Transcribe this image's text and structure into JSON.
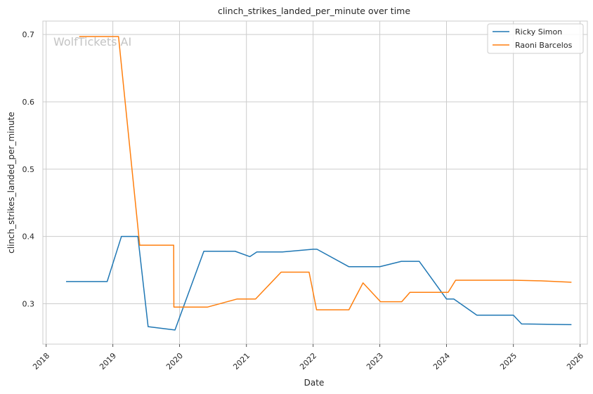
{
  "chart_data": {
    "type": "line",
    "title": "clinch_strikes_landed_per_minute over time",
    "xlabel": "Date",
    "ylabel": "clinch_strikes_landed_per_minute",
    "watermark": "WolfTickets AI",
    "x_scale": "date",
    "xlim": [
      "2017-12-14",
      "2026-02-10"
    ],
    "ylim": [
      0.24,
      0.72
    ],
    "x_ticks": [
      "2018-01-01",
      "2019-01-01",
      "2020-01-01",
      "2021-01-01",
      "2022-01-01",
      "2023-01-01",
      "2024-01-01",
      "2025-01-01",
      "2026-01-01"
    ],
    "x_tick_labels": [
      "2018",
      "2019",
      "2020",
      "2021",
      "2022",
      "2023",
      "2024",
      "2025",
      "2026"
    ],
    "y_ticks": [
      0.3,
      0.4,
      0.5,
      0.6,
      0.7
    ],
    "y_tick_labels": [
      "0.3",
      "0.4",
      "0.5",
      "0.6",
      "0.7"
    ],
    "grid": true,
    "legend_position": "top-right",
    "series": [
      {
        "name": "Ricky Simon",
        "color": "#1f77b4",
        "points": [
          [
            "2018-04-20",
            0.333
          ],
          [
            "2018-12-01",
            0.333
          ],
          [
            "2019-02-17",
            0.4
          ],
          [
            "2019-05-18",
            0.4
          ],
          [
            "2019-07-13",
            0.266
          ],
          [
            "2019-12-07",
            0.261
          ],
          [
            "2020-05-13",
            0.378
          ],
          [
            "2020-10-31",
            0.378
          ],
          [
            "2021-01-20",
            0.37
          ],
          [
            "2021-02-27",
            0.377
          ],
          [
            "2021-07-17",
            0.377
          ],
          [
            "2022-01-01",
            0.381
          ],
          [
            "2022-01-22",
            0.381
          ],
          [
            "2022-07-16",
            0.355
          ],
          [
            "2023-01-01",
            0.355
          ],
          [
            "2023-04-29",
            0.363
          ],
          [
            "2023-08-05",
            0.363
          ],
          [
            "2024-01-01",
            0.307
          ],
          [
            "2024-02-10",
            0.307
          ],
          [
            "2024-06-15",
            0.283
          ],
          [
            "2025-01-01",
            0.283
          ],
          [
            "2025-02-15",
            0.27
          ],
          [
            "2025-11-15",
            0.269
          ]
        ]
      },
      {
        "name": "Raoni Barcelos",
        "color": "#ff7f0e",
        "points": [
          [
            "2018-07-01",
            0.697
          ],
          [
            "2019-02-01",
            0.697
          ],
          [
            "2019-05-28",
            0.387
          ],
          [
            "2019-11-30",
            0.387
          ],
          [
            "2019-12-01",
            0.295
          ],
          [
            "2020-06-01",
            0.295
          ],
          [
            "2020-11-10",
            0.307
          ],
          [
            "2021-02-20",
            0.307
          ],
          [
            "2021-07-10",
            0.347
          ],
          [
            "2021-12-10",
            0.347
          ],
          [
            "2022-01-20",
            0.291
          ],
          [
            "2022-07-16",
            0.291
          ],
          [
            "2022-10-01",
            0.331
          ],
          [
            "2023-01-05",
            0.303
          ],
          [
            "2023-05-01",
            0.303
          ],
          [
            "2023-06-15",
            0.317
          ],
          [
            "2024-01-10",
            0.317
          ],
          [
            "2024-02-20",
            0.335
          ],
          [
            "2025-01-01",
            0.335
          ],
          [
            "2025-06-01",
            0.334
          ],
          [
            "2025-11-15",
            0.332
          ]
        ]
      }
    ]
  }
}
